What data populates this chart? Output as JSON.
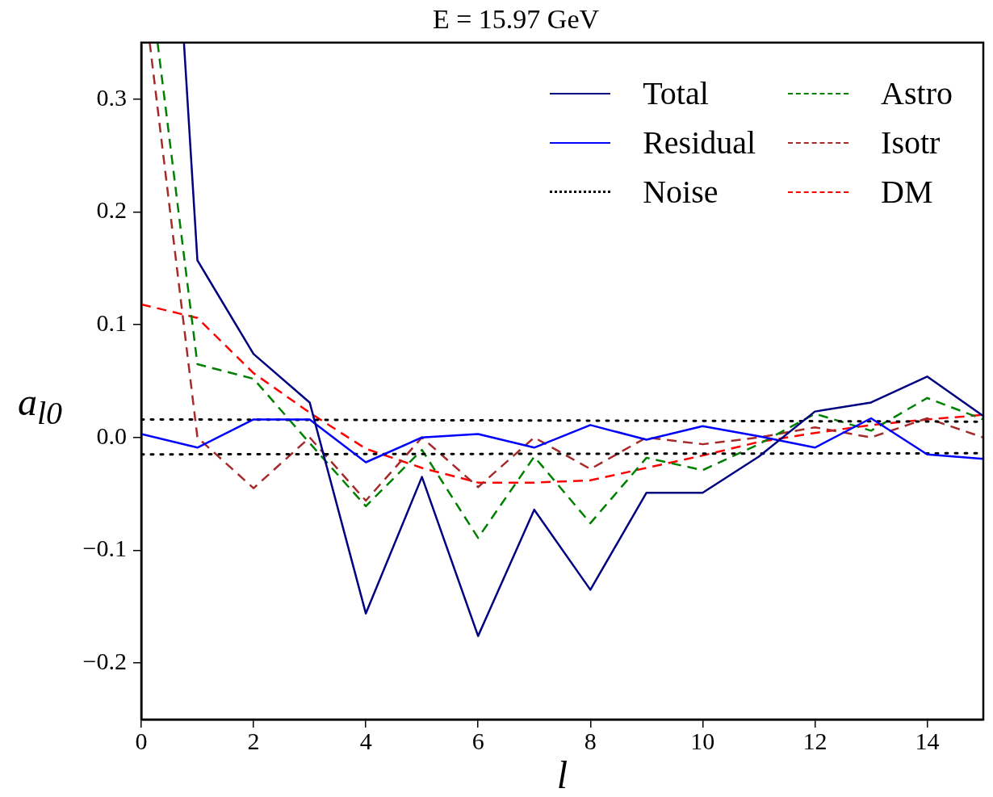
{
  "chart_data": {
    "type": "line",
    "title": "E = 15.97 GeV",
    "xlabel": "l",
    "ylabel": "a$_{l0}$",
    "x": [
      0,
      1,
      2,
      3,
      4,
      5,
      6,
      7,
      8,
      9,
      10,
      11,
      12,
      13,
      14,
      15
    ],
    "xlim": [
      0,
      15
    ],
    "xticks": [
      0,
      2,
      4,
      6,
      8,
      10,
      12,
      14
    ],
    "ylim": [
      -0.25,
      0.35
    ],
    "yticks": [
      {
        "value": -0.2,
        "label": "−0.2"
      },
      {
        "value": -0.1,
        "label": "−0.1"
      },
      {
        "value": 0,
        "label": "0.0"
      },
      {
        "value": 0.1,
        "label": "0.1"
      },
      {
        "value": 0.2,
        "label": "0.2"
      },
      {
        "value": 0.3,
        "label": "0.3"
      }
    ],
    "grid": false,
    "legend": "top right",
    "marker": "none",
    "series": [
      {
        "name": "Total",
        "color": "#000080",
        "line_style": "solid",
        "x": [
          0.76,
          1,
          2,
          3,
          4,
          5,
          6,
          7,
          8,
          9,
          10,
          11,
          12,
          13,
          14,
          15
        ],
        "values": [
          0.35,
          0.157,
          0.074,
          0.031,
          -0.156,
          -0.035,
          -0.176,
          -0.064,
          -0.135,
          -0.049,
          -0.049,
          -0.017,
          0.023,
          0.031,
          0.054,
          0.019
        ]
      },
      {
        "name": "Residual",
        "color": "#0000ff",
        "line_style": "solid",
        "values": [
          0.003,
          -0.009,
          0.016,
          0.016,
          -0.022,
          0.0,
          0.003,
          -0.009,
          0.011,
          -0.002,
          0.01,
          0.001,
          -0.009,
          0.017,
          -0.015,
          -0.019
        ]
      },
      {
        "name": "Noise",
        "color": "#000000",
        "line_style": "dotted",
        "x": [
          0,
          15
        ],
        "values": [
          0.016,
          0.014
        ]
      },
      {
        "color": "#000000",
        "line_style": "dotted",
        "x": [
          0,
          15
        ],
        "values": [
          -0.015,
          -0.014
        ]
      },
      {
        "name": "Astro",
        "color": "#008000",
        "line_style": "dashed",
        "x": [
          0.29,
          1,
          2,
          3,
          4,
          5,
          6,
          7,
          8,
          9,
          10,
          11,
          12,
          13,
          14,
          15
        ],
        "values": [
          0.35,
          0.065,
          0.052,
          -0.005,
          -0.061,
          -0.011,
          -0.089,
          -0.017,
          -0.076,
          -0.018,
          -0.029,
          -0.006,
          0.021,
          0.006,
          0.035,
          0.016
        ]
      },
      {
        "name": "Isotr",
        "color": "#a52a2a",
        "line_style": "dashed",
        "x": [
          0.15,
          1,
          2,
          3,
          4,
          5,
          6,
          7,
          8,
          9,
          10,
          11,
          12,
          13,
          14,
          15
        ],
        "values": [
          0.35,
          0.0,
          -0.045,
          0.0,
          -0.056,
          0.0,
          -0.044,
          0.0,
          -0.028,
          0.0,
          -0.006,
          0.0,
          0.009,
          0.0,
          0.017,
          0.0
        ]
      },
      {
        "name": "DM",
        "color": "#ff0000",
        "line_style": "dashed",
        "values": [
          0.118,
          0.106,
          0.057,
          0.022,
          -0.01,
          -0.027,
          -0.04,
          -0.04,
          -0.038,
          -0.027,
          -0.016,
          -0.004,
          0.004,
          0.011,
          0.016,
          0.02
        ]
      }
    ]
  }
}
